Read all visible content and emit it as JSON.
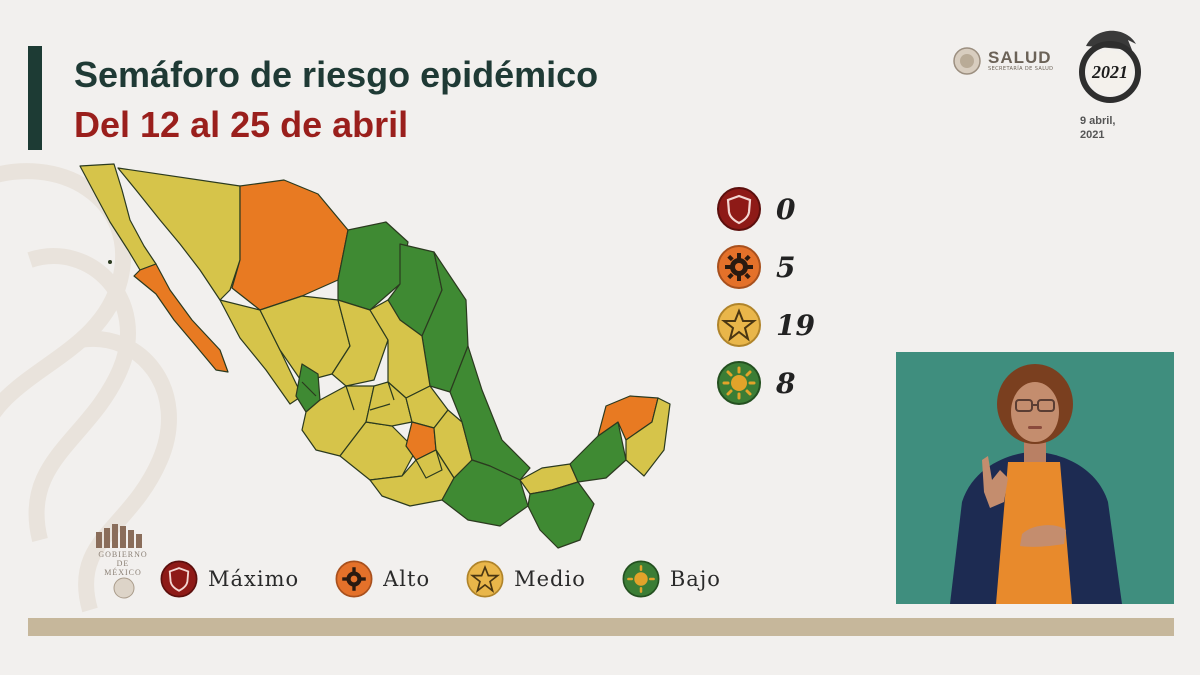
{
  "title": "Semáforo de riesgo epidémico",
  "subtitle": "Del 12 al 25 de abril",
  "header": {
    "salud_name": "SALUD",
    "salud_sub": "SECRETARÍA DE SALUD",
    "logo_year": "2021",
    "date_line1": "9 abril,",
    "date_line2": "2021"
  },
  "counts": [
    {
      "level": "maximo",
      "icon": "shield-icon",
      "value": "0",
      "color": "#8e1a17"
    },
    {
      "level": "alto",
      "icon": "gear-icon",
      "value": "5",
      "color": "#e4712a"
    },
    {
      "level": "medio",
      "icon": "star-icon",
      "value": "19",
      "color": "#e9b64a"
    },
    {
      "level": "bajo",
      "icon": "sun-icon",
      "value": "8",
      "color": "#3b7d35"
    }
  ],
  "legend": [
    {
      "label": "Máximo",
      "icon": "shield-icon",
      "color": "#8e1a17"
    },
    {
      "label": "Alto",
      "icon": "gear-icon",
      "color": "#e4712a"
    },
    {
      "label": "Medio",
      "icon": "star-icon",
      "color": "#e9b64a"
    },
    {
      "label": "Bajo",
      "icon": "sun-icon",
      "color": "#3b7d35"
    }
  ],
  "gobierno": {
    "line1": "GOBIERNO DE",
    "line2": "MÉXICO"
  },
  "map_colors": {
    "green": "#3f8a33",
    "yellow": "#d6c44a",
    "orange": "#e87a22",
    "border": "#2b3a1f"
  }
}
